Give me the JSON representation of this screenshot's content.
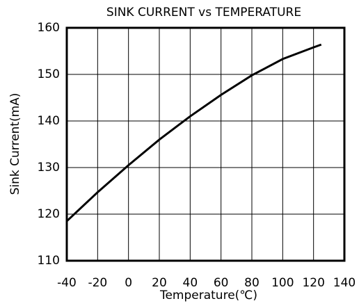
{
  "chart_data": {
    "type": "line",
    "title": "SINK CURRENT vs TEMPERATURE",
    "x_label": "Temperature(℃)",
    "y_label": "Sink Current(mA)",
    "x": [
      -40,
      -20,
      0,
      20,
      40,
      60,
      80,
      100,
      120,
      125
    ],
    "series": [
      {
        "name": "Sink Current",
        "color": "#000000",
        "values": [
          118.5,
          124.7,
          130.5,
          136,
          141,
          145.6,
          149.8,
          153.3,
          155.8,
          156.4
        ]
      }
    ],
    "xlim": [
      -40,
      140
    ],
    "xticks": [
      -40,
      -20,
      0,
      20,
      40,
      60,
      80,
      100,
      120,
      140
    ],
    "ylim": [
      110,
      160
    ],
    "yticks": [
      110,
      120,
      130,
      140,
      150,
      160
    ],
    "grid": true
  }
}
